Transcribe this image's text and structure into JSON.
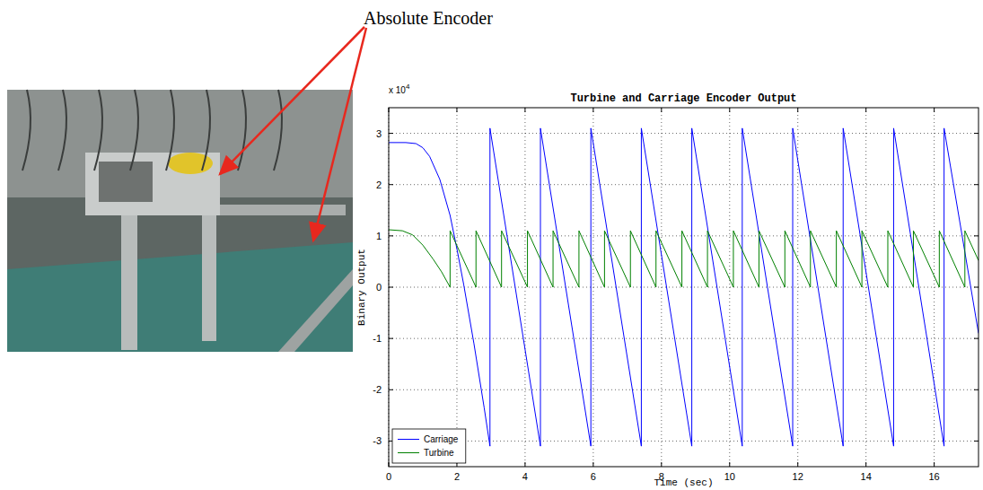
{
  "figure_annotation": "Absolute Encoder",
  "chart_data": {
    "type": "line",
    "title": "Turbine and Carriage Encoder Output",
    "x_label": "Time (sec)",
    "y_label": "Binary Output",
    "y_scale_label": {
      "base": "x 10",
      "exponent": "4"
    },
    "xlim": [
      0,
      17.3
    ],
    "xticks": [
      0,
      2,
      4,
      6,
      8,
      10,
      12,
      14,
      16
    ],
    "ylim": [
      -3.5,
      3.5
    ],
    "yticks": [
      -3,
      -2,
      -1,
      0,
      1,
      2,
      3
    ],
    "grid": true,
    "legend": "lower left",
    "series": [
      {
        "name": "Carriage",
        "color": "#0000ff",
        "x": [
          0,
          0.5,
          0.8,
          1.0,
          1.2,
          1.5,
          1.8,
          2.0,
          2.2,
          2.5,
          2.8,
          2.97,
          2.97,
          4.45,
          4.45,
          5.93,
          5.93,
          7.41,
          7.41,
          8.89,
          8.89,
          10.37,
          10.37,
          11.85,
          11.85,
          13.33,
          13.33,
          14.81,
          14.81,
          16.29,
          16.29,
          17.3
        ],
        "values": [
          2.82,
          2.82,
          2.8,
          2.72,
          2.55,
          2.1,
          1.4,
          0.75,
          0.05,
          -1.1,
          -2.35,
          -3.1,
          3.1,
          -3.1,
          3.1,
          -3.1,
          3.1,
          -3.1,
          3.1,
          -3.1,
          3.1,
          -3.1,
          3.1,
          -3.1,
          3.1,
          -3.1,
          3.1,
          -3.1,
          3.1,
          -3.1,
          3.1,
          -0.9
        ]
      },
      {
        "name": "Turbine",
        "color": "#008000",
        "x": [
          0,
          0.4,
          0.7,
          1.0,
          1.3,
          1.55,
          1.8,
          1.8,
          2.56,
          2.56,
          3.31,
          3.31,
          4.07,
          4.07,
          4.82,
          4.82,
          5.58,
          5.58,
          6.33,
          6.33,
          7.09,
          7.09,
          7.84,
          7.84,
          8.6,
          8.6,
          9.35,
          9.35,
          10.11,
          10.11,
          10.86,
          10.86,
          11.62,
          11.62,
          12.37,
          12.37,
          13.13,
          13.13,
          13.88,
          13.88,
          14.64,
          14.64,
          15.39,
          15.39,
          16.15,
          16.15,
          16.9,
          16.9,
          17.3
        ],
        "values": [
          1.12,
          1.1,
          1.02,
          0.82,
          0.55,
          0.3,
          0,
          1.1,
          0,
          1.1,
          0,
          1.1,
          0,
          1.1,
          0,
          1.1,
          0,
          1.1,
          0,
          1.1,
          0,
          1.1,
          0,
          1.1,
          0,
          1.1,
          0,
          1.1,
          0,
          1.1,
          0,
          1.1,
          0,
          1.1,
          0,
          1.1,
          0,
          1.1,
          0,
          1.1,
          0,
          1.1,
          0,
          1.1,
          0,
          1.1,
          0,
          1.1,
          0.52
        ]
      }
    ]
  }
}
